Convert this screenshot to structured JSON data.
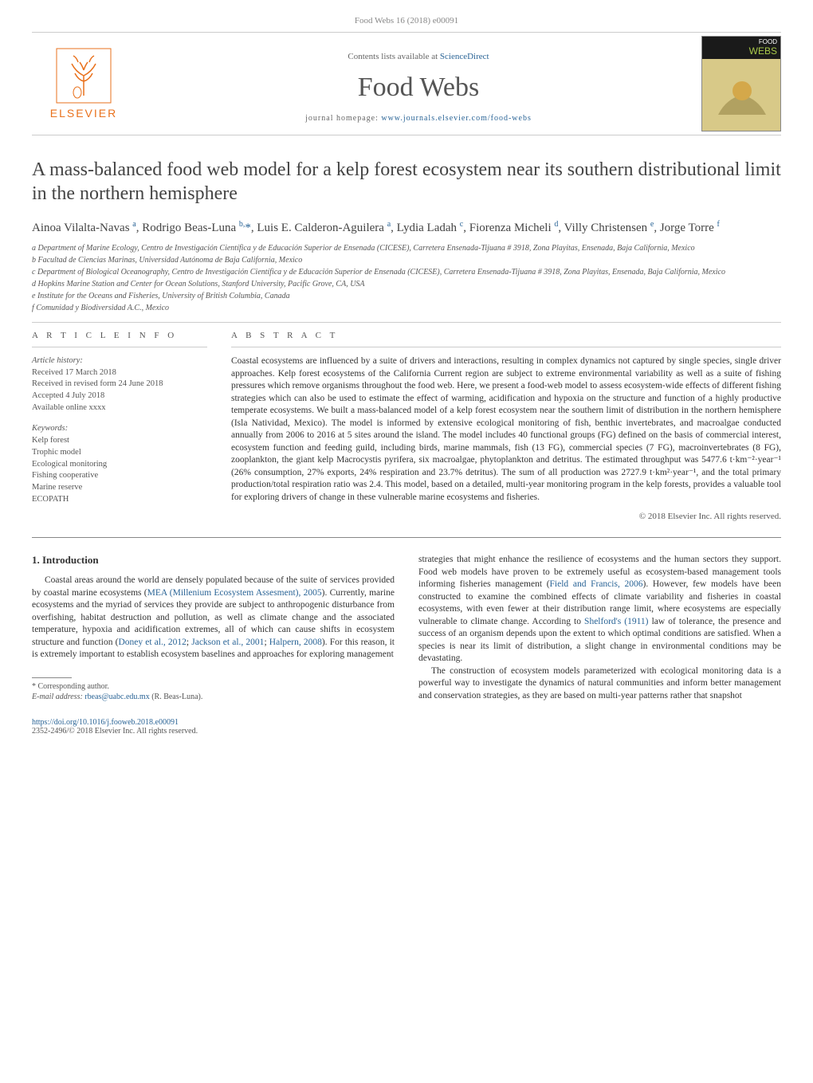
{
  "top_citation": "Food Webs 16 (2018) e00091",
  "header": {
    "contents_prefix": "Contents lists available at ",
    "contents_link": "ScienceDirect",
    "journal": "Food Webs",
    "homepage_prefix": "journal homepage: ",
    "homepage_link": "www.journals.elsevier.com/food-webs",
    "publisher": "ELSEVIER",
    "cover_word1": "FOOD",
    "cover_word2": "WEBS"
  },
  "title": "A mass-balanced food web model for a kelp forest ecosystem near its southern distributional limit in the northern hemisphere",
  "authors_html": "Ainoa Vilalta-Navas <sup>a</sup>, Rodrigo Beas-Luna <sup>b,</sup><span class='star'>*</span>, Luis E. Calderon-Aguilera <sup>a</sup>, Lydia Ladah <sup>c</sup>, Fiorenza Micheli <sup>d</sup>, Villy Christensen <sup>e</sup>, Jorge Torre <sup>f</sup>",
  "affiliations": [
    "a  Department of Marine Ecology, Centro de Investigación Científica y de Educación Superior de Ensenada (CICESE), Carretera Ensenada-Tijuana # 3918, Zona Playitas, Ensenada, Baja California, Mexico",
    "b  Facultad de Ciencias Marinas, Universidad Autónoma de Baja California, Mexico",
    "c  Department of Biological Oceanography, Centro de Investigación Científica y de Educación Superior de Ensenada (CICESE), Carretera Ensenada-Tijuana # 3918, Zona Playitas, Ensenada, Baja California, Mexico",
    "d  Hopkins Marine Station and Center for Ocean Solutions, Stanford University, Pacific Grove, CA, USA",
    "e  Institute for the Oceans and Fisheries, University of British Columbia, Canada",
    "f  Comunidad y Biodiversidad A.C., Mexico"
  ],
  "article_info": {
    "head": "A R T I C L E   I N F O",
    "history_head": "Article history:",
    "received": "Received 17 March 2018",
    "revised": "Received in revised form 24 June 2018",
    "accepted": "Accepted 4 July 2018",
    "online": "Available online xxxx",
    "keywords_head": "Keywords:",
    "keywords": [
      "Kelp forest",
      "Trophic model",
      "Ecological monitoring",
      "Fishing cooperative",
      "Marine reserve",
      "ECOPATH"
    ]
  },
  "abstract": {
    "head": "A B S T R A C T",
    "text": "Coastal ecosystems are influenced by a suite of drivers and interactions, resulting in complex dynamics not captured by single species, single driver approaches. Kelp forest ecosystems of the California Current region are subject to extreme environmental variability as well as a suite of fishing pressures which remove organisms throughout the food web. Here, we present a food-web model to assess ecosystem-wide effects of different fishing strategies which can also be used to estimate the effect of warming, acidification and hypoxia on the structure and function of a highly productive temperate ecosystems. We built a mass-balanced model of a kelp forest ecosystem near the southern limit of distribution in the northern hemisphere (Isla Natividad, Mexico). The model is informed by extensive ecological monitoring of fish, benthic invertebrates, and macroalgae conducted annually from 2006 to 2016 at 5 sites around the island. The model includes 40 functional groups (FG) defined on the basis of commercial interest, ecosystem function and feeding guild, including birds, marine mammals, fish (13 FG), commercial species (7 FG), macroinvertebrates (8 FG), zooplankton, the giant kelp Macrocystis pyrifera, six macroalgae, phytoplankton and detritus. The estimated throughput was 5477.6 t·km⁻²·year⁻¹ (26% consumption, 27% exports, 24% respiration and 23.7% detritus). The sum of all production was 2727.9 t·km²·year⁻¹, and the total primary production/total respiration ratio was 2.4. This model, based on a detailed, multi-year monitoring program in the kelp forests, provides a valuable tool for exploring drivers of change in these vulnerable marine ecosystems and fisheries.",
    "copyright": "© 2018 Elsevier Inc. All rights reserved."
  },
  "intro": {
    "heading": "1. Introduction",
    "para1": "Coastal areas around the world are densely populated because of the suite of services provided by coastal marine ecosystems (<a href='#'>MEA (Millenium Ecosystem Assesment), 2005</a>). Currently, marine ecosystems and the myriad of services they provide are subject to anthropogenic disturbance from overfishing, habitat destruction and pollution, as well as climate change and the associated temperature, hypoxia and acidification extremes, all of which can cause shifts in ecosystem structure and function (<a href='#'>Doney et al., 2012</a>; <a href='#'>Jackson et al., 2001</a>; <a href='#'>Halpern, 2008</a>). For this reason, it is extremely important to establish ecosystem baselines and approaches for exploring management",
    "para2": "strategies that might enhance the resilience of ecosystems and the human sectors they support. Food web models have proven to be extremely useful as ecosystem-based management tools informing fisheries management (<a href='#'>Field and Francis, 2006</a>). However, few models have been constructed to examine the combined effects of climate variability and fisheries in coastal ecosystems, with even fewer at their distribution range limit, where ecosystems are especially vulnerable to climate change. According to <a href='#'>Shelford's (1911)</a> law of tolerance, the presence and success of an organism depends upon the extent to which optimal conditions are satisfied. When a species is near its limit of distribution, a slight change in environmental conditions may be devastating.",
    "para3": "The construction of ecosystem models parameterized with ecological monitoring data is a powerful way to investigate the dynamics of natural communities and inform better management and conservation strategies, as they are based on multi-year patterns rather that snapshot"
  },
  "footnote": {
    "corr": "*  Corresponding author.",
    "email_label": "E-mail address: ",
    "email": "rbeas@uabc.edu.mx",
    "email_suffix": " (R. Beas-Luna)."
  },
  "footer": {
    "doi": "https://doi.org/10.1016/j.fooweb.2018.e00091",
    "issn": "2352-2496/© 2018 Elsevier Inc. All rights reserved."
  },
  "colors": {
    "link": "#2a6496",
    "elsevier_orange": "#e9711c",
    "rule": "#cccccc",
    "text": "#333333"
  }
}
